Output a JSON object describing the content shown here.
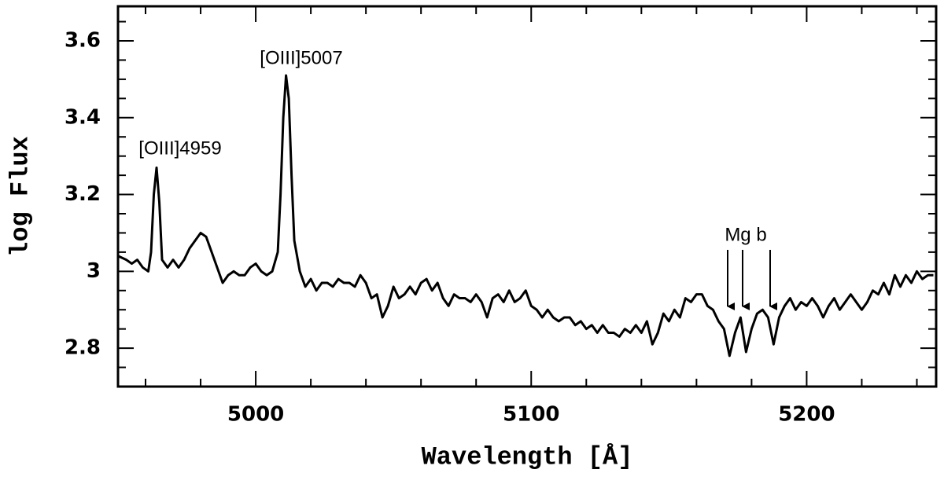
{
  "chart_data": {
    "type": "line",
    "xlabel": "Wavelength [Å]",
    "ylabel": "log Flux",
    "annotations": [
      "[OIII]4959",
      "[OIII]5007",
      "Mg b"
    ],
    "xlim": [
      4950,
      5247
    ],
    "ylim": [
      2.7,
      3.69
    ],
    "xticks": [
      5000,
      5100,
      5200
    ],
    "yticks": [
      2.8,
      3,
      3.2,
      3.4,
      3.6
    ],
    "xminorticks": [
      4960,
      4980,
      5020,
      5040,
      5060,
      5080,
      5120,
      5140,
      5160,
      5180,
      5220,
      5240
    ],
    "yminorticks": [
      2.75,
      2.85,
      2.9,
      2.95,
      3.05,
      3.1,
      3.15,
      3.25,
      3.3,
      3.35,
      3.45,
      3.5,
      3.55,
      3.65
    ],
    "series": [
      {
        "color": "#000000",
        "x": [
          4950,
          4953,
          4955,
          4957,
          4959,
          4961,
          4962,
          4963,
          4964,
          4965,
          4966,
          4968,
          4970,
          4972,
          4974,
          4976,
          4978,
          4980,
          4982,
          4984,
          4986,
          4988,
          4990,
          4992,
          4994,
          4996,
          4998,
          5000,
          5002,
          5004,
          5006,
          5008,
          5009,
          5010,
          5011,
          5012,
          5013,
          5014,
          5016,
          5018,
          5020,
          5022,
          5024,
          5026,
          5028,
          5030,
          5032,
          5034,
          5036,
          5038,
          5040,
          5042,
          5044,
          5046,
          5048,
          5050,
          5052,
          5054,
          5056,
          5058,
          5060,
          5062,
          5064,
          5066,
          5068,
          5070,
          5072,
          5074,
          5076,
          5078,
          5080,
          5082,
          5084,
          5086,
          5088,
          5090,
          5092,
          5094,
          5096,
          5098,
          5100,
          5102,
          5104,
          5106,
          5108,
          5110,
          5112,
          5114,
          5116,
          5118,
          5120,
          5122,
          5124,
          5126,
          5128,
          5130,
          5132,
          5134,
          5136,
          5138,
          5140,
          5142,
          5144,
          5146,
          5148,
          5150,
          5152,
          5154,
          5156,
          5158,
          5160,
          5162,
          5164,
          5166,
          5168,
          5170,
          5172,
          5174,
          5176,
          5178,
          5180,
          5182,
          5184,
          5186,
          5188,
          5190,
          5192,
          5194,
          5196,
          5198,
          5200,
          5202,
          5204,
          5206,
          5208,
          5210,
          5212,
          5214,
          5216,
          5218,
          5220,
          5222,
          5224,
          5226,
          5228,
          5230,
          5232,
          5234,
          5236,
          5238,
          5240,
          5242,
          5244,
          5246
        ],
        "values": [
          3.04,
          3.03,
          3.02,
          3.03,
          3.01,
          3.0,
          3.05,
          3.2,
          3.27,
          3.18,
          3.03,
          3.01,
          3.03,
          3.01,
          3.03,
          3.06,
          3.08,
          3.1,
          3.09,
          3.05,
          3.01,
          2.97,
          2.99,
          3.0,
          2.99,
          2.99,
          3.01,
          3.02,
          3.0,
          2.99,
          3.0,
          3.05,
          3.2,
          3.4,
          3.51,
          3.45,
          3.25,
          3.08,
          3.0,
          2.96,
          2.98,
          2.95,
          2.97,
          2.97,
          2.96,
          2.98,
          2.97,
          2.97,
          2.96,
          2.99,
          2.97,
          2.93,
          2.94,
          2.88,
          2.91,
          2.96,
          2.93,
          2.94,
          2.96,
          2.94,
          2.97,
          2.98,
          2.95,
          2.97,
          2.93,
          2.91,
          2.94,
          2.93,
          2.93,
          2.92,
          2.94,
          2.92,
          2.88,
          2.93,
          2.94,
          2.92,
          2.95,
          2.92,
          2.93,
          2.95,
          2.91,
          2.9,
          2.88,
          2.9,
          2.88,
          2.87,
          2.88,
          2.88,
          2.86,
          2.87,
          2.85,
          2.86,
          2.84,
          2.86,
          2.84,
          2.84,
          2.83,
          2.85,
          2.84,
          2.86,
          2.84,
          2.87,
          2.81,
          2.84,
          2.89,
          2.87,
          2.9,
          2.88,
          2.93,
          2.92,
          2.94,
          2.94,
          2.91,
          2.9,
          2.87,
          2.85,
          2.78,
          2.84,
          2.88,
          2.79,
          2.85,
          2.89,
          2.9,
          2.88,
          2.81,
          2.88,
          2.91,
          2.93,
          2.9,
          2.92,
          2.91,
          2.93,
          2.91,
          2.88,
          2.91,
          2.93,
          2.9,
          2.92,
          2.94,
          2.92,
          2.9,
          2.92,
          2.95,
          2.94,
          2.97,
          2.94,
          2.99,
          2.96,
          2.99,
          2.97,
          3.0,
          2.98,
          2.99,
          2.99
        ]
      }
    ]
  }
}
